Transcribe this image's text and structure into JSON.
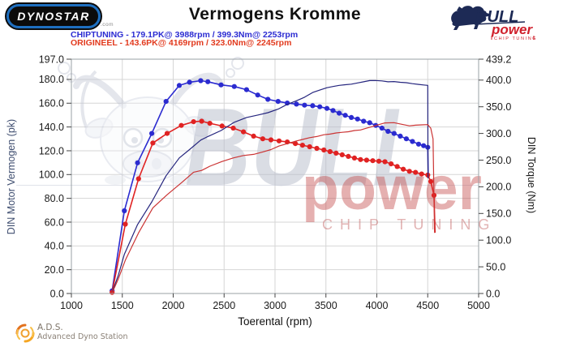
{
  "header": {
    "logo_text": "DYNOSTAR",
    "logo_suffix": ".com",
    "title": "Vermogens Kromme",
    "legend": [
      {
        "label": "CHIPTUNING  - 179.1PK@ 3988rpm / 399.3Nm@ 2253rpm",
        "color": "#2b2bd2"
      },
      {
        "label": "ORIGINEEL  - 143.6PK@ 4169rpm / 323.0Nm@ 2245rpm",
        "color": "#e23a1e"
      }
    ],
    "brand": {
      "name": "BULL",
      "sub": "power",
      "tagline": "CHIP TUNING"
    }
  },
  "footer": {
    "ads_title": "A.D.S.",
    "ads_subtitle": "Advanced Dyno Station"
  },
  "watermark": {
    "bull": "BULL",
    "power": "power",
    "tagline": "CHIP TUNING"
  },
  "chart_data": {
    "type": "line",
    "title": "Vermogens Kromme",
    "xlabel": "Toerental (rpm)",
    "ylabel_left": "DIN Motor Vermogen (pk)",
    "ylabel_right": "DIN Torque (Nm)",
    "xlim": [
      1000,
      5000
    ],
    "ylim_left": [
      0,
      197
    ],
    "ylim_right": [
      0,
      439.2
    ],
    "grid": true,
    "legend_position": "top-left",
    "x_ticks": [
      [
        1000,
        "1000"
      ],
      [
        1500,
        "1500"
      ],
      [
        2000,
        "2000"
      ],
      [
        2500,
        "2500"
      ],
      [
        3000,
        "3000"
      ],
      [
        3500,
        "3500"
      ],
      [
        4000,
        "4000"
      ],
      [
        4500,
        "4500"
      ],
      [
        5000,
        "5000"
      ]
    ],
    "y_ticks_left": [
      [
        197,
        "197.0"
      ],
      [
        180,
        "180.0"
      ],
      [
        160,
        "160.0"
      ],
      [
        140,
        "140.0"
      ],
      [
        120,
        "120.0"
      ],
      [
        100,
        "100.0"
      ],
      [
        80,
        "80.0"
      ],
      [
        60,
        "60.0"
      ],
      [
        40,
        "40.0"
      ],
      [
        20,
        "20.0"
      ],
      [
        0,
        "0.0"
      ]
    ],
    "y_ticks_right": [
      [
        439.2,
        "439.2"
      ],
      [
        400,
        "400.0"
      ],
      [
        350,
        "350.0"
      ],
      [
        300,
        "300.0"
      ],
      [
        250,
        "250.0"
      ],
      [
        200,
        "200.0"
      ],
      [
        150,
        "150.0"
      ],
      [
        100,
        "100.0"
      ],
      [
        50,
        "50.0"
      ],
      [
        0,
        "0.0"
      ]
    ],
    "style": {
      "grid_color": "#d6d6d6",
      "border_color": "#9aa0a6",
      "tick_color": "#444444",
      "tick_label_color": "#1a1a1a"
    },
    "series": [
      {
        "name": "chiptuning-torque",
        "unit": "Nm",
        "axis": "right",
        "color": "#2b2bd0",
        "width": 1.6,
        "markers": true,
        "points": [
          [
            1400,
            5
          ],
          [
            1520,
            155
          ],
          [
            1650,
            245
          ],
          [
            1790,
            300
          ],
          [
            1930,
            360
          ],
          [
            2060,
            390
          ],
          [
            2160,
            396
          ],
          [
            2270,
            399
          ],
          [
            2340,
            397
          ],
          [
            2470,
            391
          ],
          [
            2600,
            388
          ],
          [
            2720,
            382
          ],
          [
            2830,
            372
          ],
          [
            2930,
            364
          ],
          [
            3030,
            360
          ],
          [
            3120,
            357
          ],
          [
            3210,
            355
          ],
          [
            3290,
            353
          ],
          [
            3370,
            352
          ],
          [
            3440,
            350
          ],
          [
            3510,
            347
          ],
          [
            3570,
            343
          ],
          [
            3630,
            338
          ],
          [
            3690,
            334
          ],
          [
            3750,
            330
          ],
          [
            3810,
            327
          ],
          [
            3870,
            323
          ],
          [
            3930,
            320
          ],
          [
            3990,
            315
          ],
          [
            4050,
            310
          ],
          [
            4110,
            304
          ],
          [
            4170,
            300
          ],
          [
            4230,
            295
          ],
          [
            4290,
            290
          ],
          [
            4350,
            285
          ],
          [
            4410,
            280
          ],
          [
            4460,
            277
          ],
          [
            4500,
            274
          ]
        ],
        "tail": [
          [
            4505,
            216
          ]
        ]
      },
      {
        "name": "origineel-torque",
        "unit": "Nm",
        "axis": "right",
        "color": "#e02222",
        "width": 1.6,
        "markers": true,
        "points": [
          [
            1400,
            2
          ],
          [
            1530,
            130
          ],
          [
            1660,
            215
          ],
          [
            1800,
            282
          ],
          [
            1940,
            300
          ],
          [
            2080,
            315
          ],
          [
            2200,
            322
          ],
          [
            2280,
            323
          ],
          [
            2360,
            319
          ],
          [
            2480,
            314
          ],
          [
            2590,
            310
          ],
          [
            2690,
            303
          ],
          [
            2790,
            295
          ],
          [
            2880,
            290
          ],
          [
            2960,
            288
          ],
          [
            3040,
            286
          ],
          [
            3120,
            284
          ],
          [
            3200,
            281
          ],
          [
            3270,
            278
          ],
          [
            3340,
            275
          ],
          [
            3410,
            272
          ],
          [
            3480,
            269
          ],
          [
            3540,
            266
          ],
          [
            3600,
            263
          ],
          [
            3660,
            260
          ],
          [
            3720,
            257
          ],
          [
            3780,
            254
          ],
          [
            3840,
            251
          ],
          [
            3900,
            250
          ],
          [
            3960,
            249
          ],
          [
            4020,
            248
          ],
          [
            4080,
            247
          ],
          [
            4140,
            243
          ],
          [
            4200,
            238
          ],
          [
            4260,
            233
          ],
          [
            4320,
            229
          ],
          [
            4380,
            227
          ],
          [
            4440,
            224
          ],
          [
            4500,
            222
          ],
          [
            4530,
            210
          ],
          [
            4562,
            184
          ]
        ],
        "tail": [
          [
            4572,
            114
          ]
        ]
      },
      {
        "name": "chiptuning-power",
        "unit": "pk",
        "axis": "left",
        "color": "#25257e",
        "width": 1.2,
        "markers": false,
        "points": [
          [
            1400,
            1
          ],
          [
            1460,
            15
          ],
          [
            1520,
            33
          ],
          [
            1650,
            58
          ],
          [
            1790,
            77
          ],
          [
            1930,
            99
          ],
          [
            2060,
            114
          ],
          [
            2160,
            121
          ],
          [
            2270,
            129
          ],
          [
            2340,
            132
          ],
          [
            2470,
            137
          ],
          [
            2600,
            144
          ],
          [
            2720,
            148
          ],
          [
            2830,
            150
          ],
          [
            2930,
            152
          ],
          [
            3030,
            155
          ],
          [
            3120,
            159
          ],
          [
            3210,
            162
          ],
          [
            3290,
            165
          ],
          [
            3370,
            169
          ],
          [
            3440,
            171
          ],
          [
            3510,
            173
          ],
          [
            3570,
            174
          ],
          [
            3630,
            175
          ],
          [
            3690,
            175.5
          ],
          [
            3750,
            176
          ],
          [
            3810,
            177
          ],
          [
            3870,
            178
          ],
          [
            3930,
            179
          ],
          [
            3988,
            179.1
          ],
          [
            4050,
            178.7
          ],
          [
            4110,
            178
          ],
          [
            4170,
            178.2
          ],
          [
            4230,
            177.6
          ],
          [
            4290,
            177.2
          ],
          [
            4350,
            176.4
          ],
          [
            4410,
            175.8
          ],
          [
            4460,
            175.3
          ],
          [
            4500,
            175
          ]
        ],
        "tail": [
          [
            4503,
            97
          ]
        ]
      },
      {
        "name": "origineel-power",
        "unit": "pk",
        "axis": "left",
        "color": "#cb3434",
        "width": 1.2,
        "markers": false,
        "points": [
          [
            1400,
            0.5
          ],
          [
            1460,
            12
          ],
          [
            1530,
            28
          ],
          [
            1660,
            51
          ],
          [
            1800,
            72
          ],
          [
            1940,
            83
          ],
          [
            2080,
            93
          ],
          [
            2200,
            102
          ],
          [
            2280,
            103.5
          ],
          [
            2360,
            107
          ],
          [
            2480,
            111
          ],
          [
            2590,
            114
          ],
          [
            2690,
            116
          ],
          [
            2790,
            117
          ],
          [
            2880,
            119
          ],
          [
            2960,
            121
          ],
          [
            3040,
            124
          ],
          [
            3120,
            126
          ],
          [
            3200,
            128
          ],
          [
            3270,
            129.5
          ],
          [
            3340,
            131
          ],
          [
            3410,
            132
          ],
          [
            3480,
            133.5
          ],
          [
            3540,
            134
          ],
          [
            3600,
            135
          ],
          [
            3660,
            135.5
          ],
          [
            3720,
            136
          ],
          [
            3780,
            137
          ],
          [
            3840,
            137.5
          ],
          [
            3900,
            139
          ],
          [
            3960,
            140.5
          ],
          [
            4020,
            142
          ],
          [
            4080,
            143.4
          ],
          [
            4169,
            143.6
          ],
          [
            4260,
            142
          ],
          [
            4320,
            141
          ],
          [
            4380,
            141.5
          ],
          [
            4440,
            141.8
          ],
          [
            4500,
            142
          ],
          [
            4530,
            139
          ],
          [
            4552,
            130
          ]
        ],
        "tail": [
          [
            4567,
            51
          ]
        ]
      }
    ],
    "peaks": {
      "chiptuning": {
        "power_pk": 179.1,
        "power_rpm": 3988,
        "torque_nm": 399.3,
        "torque_rpm": 2253
      },
      "origineel": {
        "power_pk": 143.6,
        "power_rpm": 4169,
        "torque_nm": 323.0,
        "torque_rpm": 2245
      }
    }
  }
}
